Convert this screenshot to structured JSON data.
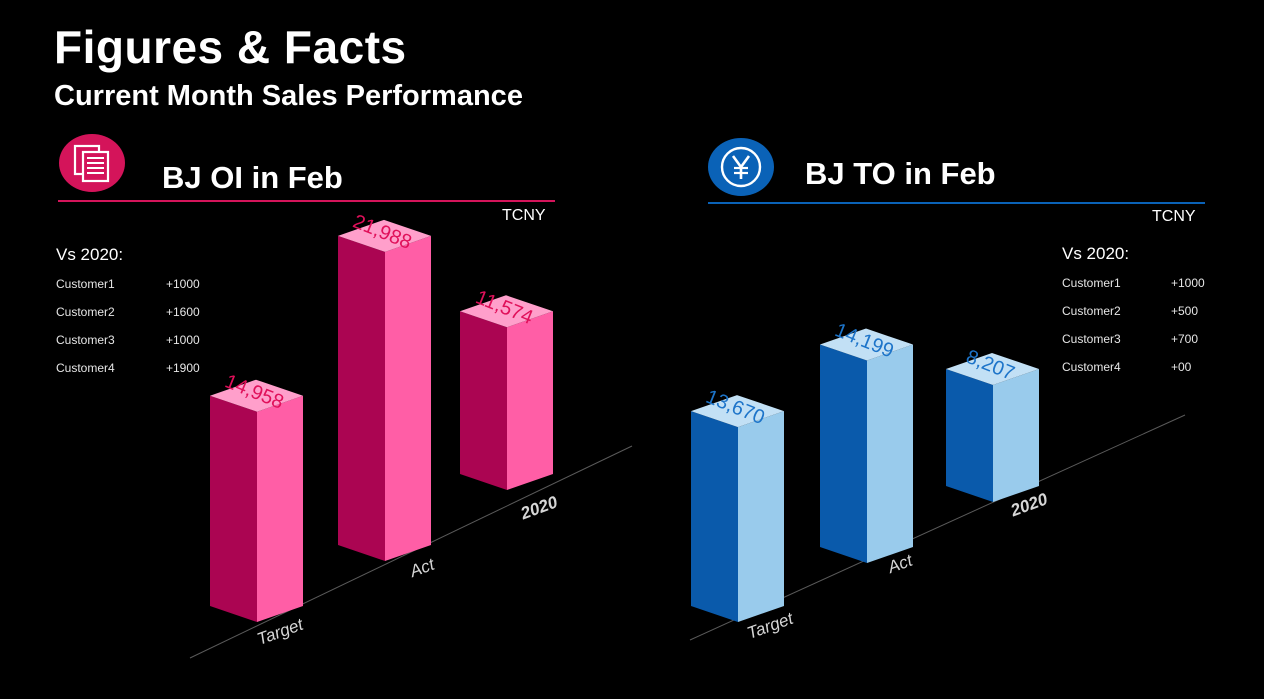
{
  "header": {
    "title": "Figures & Facts",
    "subtitle": "Current Month Sales Performance"
  },
  "colors": {
    "background": "#000000",
    "oi_accent": "#d4145a",
    "oi_front": "#ab0552",
    "oi_side": "#ff5ea6",
    "oi_top": "#ff9fcb",
    "oi_label": "#e0105a",
    "to_accent": "#0a62b7",
    "to_front": "#0a5aab",
    "to_side": "#99cbec",
    "to_top": "#c2e0f5",
    "to_label": "#1d74c9",
    "axis_label": "#d6d6d6"
  },
  "oi_panel": {
    "icon": "document-stack-icon",
    "chart_title": "BJ OI in Feb",
    "unit": "TCNY",
    "vs_title": "Vs 2020:",
    "customers": [
      {
        "name": "Customer1",
        "value": "+1000"
      },
      {
        "name": "Customer2",
        "value": "+1600"
      },
      {
        "name": "Customer3",
        "value": "+1000"
      },
      {
        "name": "Customer4",
        "value": "+1900"
      }
    ]
  },
  "to_panel": {
    "icon": "yen-icon",
    "chart_title": "BJ TO in Feb",
    "unit": "TCNY",
    "vs_title": "Vs 2020:",
    "customers": [
      {
        "name": "Customer1",
        "value": "+1000"
      },
      {
        "name": "Customer2",
        "value": "+500"
      },
      {
        "name": "Customer3",
        "value": "+700"
      },
      {
        "name": "Customer4",
        "value": "+00"
      }
    ]
  },
  "chart_data": [
    {
      "type": "bar",
      "title": "BJ OI in Feb",
      "unit": "TCNY",
      "categories": [
        "Target",
        "Act",
        "2020"
      ],
      "values": [
        14958,
        21988,
        11574
      ],
      "value_labels": [
        "14,958",
        "21,988",
        "11,574"
      ],
      "ylim": [
        0,
        25000
      ],
      "grid": false,
      "legend": "none",
      "style": "3d-isometric"
    },
    {
      "type": "bar",
      "title": "BJ TO in Feb",
      "unit": "TCNY",
      "categories": [
        "Target",
        "Act",
        "2020"
      ],
      "values": [
        13670,
        14199,
        8207
      ],
      "value_labels": [
        "13,670",
        "14,199",
        "8,207"
      ],
      "ylim": [
        0,
        25000
      ],
      "grid": false,
      "legend": "none",
      "style": "3d-isometric"
    }
  ]
}
